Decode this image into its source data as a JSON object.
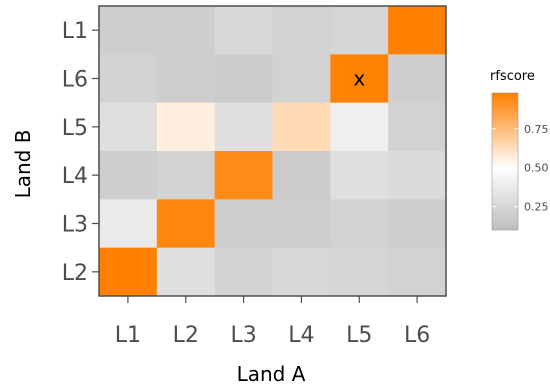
{
  "chart_data": {
    "type": "heatmap",
    "xlabel": "Land A",
    "ylabel": "Land B",
    "x_categories": [
      "L1",
      "L2",
      "L3",
      "L4",
      "L5",
      "L6"
    ],
    "y_categories": [
      "L1",
      "L6",
      "L5",
      "L4",
      "L3",
      "L2"
    ],
    "cells": [
      [
        0.2,
        0.2,
        0.26,
        0.22,
        0.24,
        0.98
      ],
      [
        0.23,
        0.2,
        0.18,
        0.22,
        0.97,
        0.2
      ],
      [
        0.3,
        0.56,
        0.3,
        0.64,
        0.4,
        0.22
      ],
      [
        0.2,
        0.23,
        0.94,
        0.18,
        0.3,
        0.28
      ],
      [
        0.37,
        0.95,
        0.2,
        0.2,
        0.22,
        0.2
      ],
      [
        0.98,
        0.3,
        0.23,
        0.26,
        0.25,
        0.22
      ]
    ],
    "annotations": [
      {
        "x": "L5",
        "y": "L6",
        "text": "x"
      }
    ],
    "colorscale": {
      "title": "rfscore",
      "low_color": "#bebebe",
      "mid_color": "#ffffff",
      "high_color": "#ff7f00",
      "range": [
        0.1,
        0.98
      ],
      "midpoint": 0.5,
      "ticks": [
        "0.25",
        "0.50",
        "0.75"
      ],
      "tick_values": [
        0.25,
        0.5,
        0.75
      ]
    },
    "panel_border_color": "#4d4d4d"
  }
}
